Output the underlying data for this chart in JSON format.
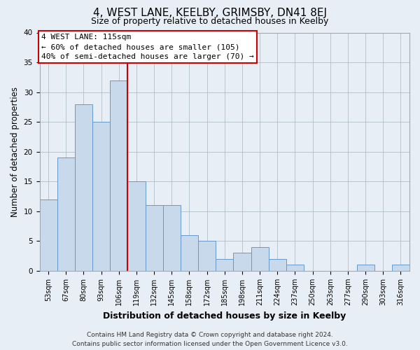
{
  "title": "4, WEST LANE, KEELBY, GRIMSBY, DN41 8EJ",
  "subtitle": "Size of property relative to detached houses in Keelby",
  "xlabel": "Distribution of detached houses by size in Keelby",
  "ylabel": "Number of detached properties",
  "bar_labels": [
    "53sqm",
    "67sqm",
    "80sqm",
    "93sqm",
    "106sqm",
    "119sqm",
    "132sqm",
    "145sqm",
    "158sqm",
    "172sqm",
    "185sqm",
    "198sqm",
    "211sqm",
    "224sqm",
    "237sqm",
    "250sqm",
    "263sqm",
    "277sqm",
    "290sqm",
    "303sqm",
    "316sqm"
  ],
  "bar_values": [
    12,
    19,
    28,
    25,
    32,
    15,
    11,
    11,
    6,
    5,
    2,
    3,
    4,
    2,
    1,
    0,
    0,
    0,
    1,
    0,
    1
  ],
  "bar_color": "#c9d9ec",
  "bar_edge_color": "#6699cc",
  "highlight_line_color": "#cc0000",
  "highlight_line_index": 4,
  "ylim": [
    0,
    40
  ],
  "yticks": [
    0,
    5,
    10,
    15,
    20,
    25,
    30,
    35,
    40
  ],
  "annotation_line1": "4 WEST LANE: 115sqm",
  "annotation_line2": "← 60% of detached houses are smaller (105)",
  "annotation_line3": "40% of semi-detached houses are larger (70) →",
  "annotation_box_facecolor": "#ffffff",
  "annotation_box_edgecolor": "#cc0000",
  "footer_line1": "Contains HM Land Registry data © Crown copyright and database right 2024.",
  "footer_line2": "Contains public sector information licensed under the Open Government Licence v3.0.",
  "fig_facecolor": "#e8eef5",
  "plot_facecolor": "#e8eef5",
  "grid_color": "#b0bec8",
  "title_fontsize": 11,
  "subtitle_fontsize": 9,
  "ylabel_fontsize": 8.5,
  "xlabel_fontsize": 9,
  "tick_fontsize": 7,
  "annotation_fontsize": 8,
  "footer_fontsize": 6.5
}
